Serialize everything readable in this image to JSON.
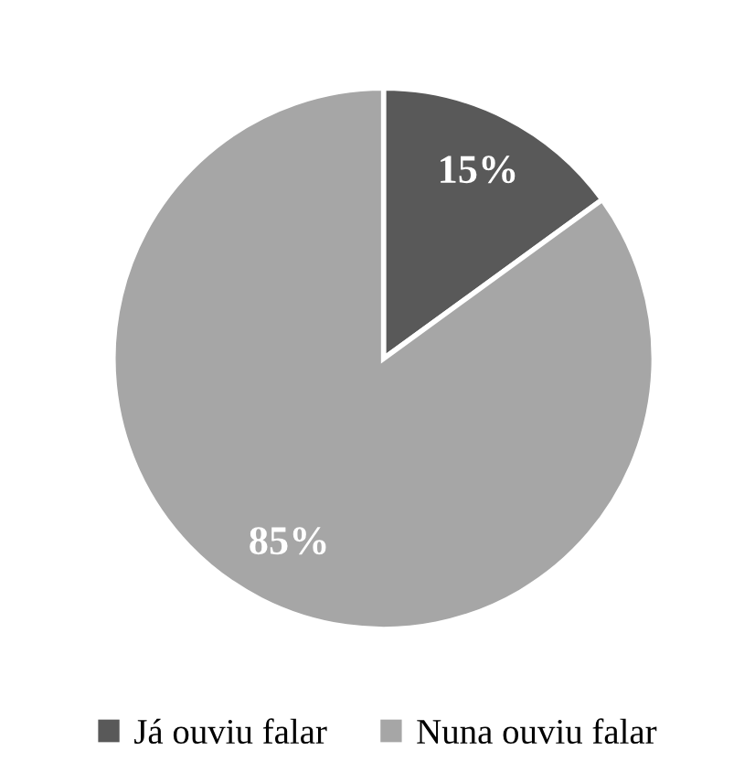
{
  "chart_data": {
    "type": "pie",
    "categories": [
      "Já ouviu falar",
      "Nuna ouviu falar"
    ],
    "values": [
      15,
      85
    ],
    "colors": [
      "#595959",
      "#a6a6a6"
    ],
    "value_labels": [
      "15%",
      "85%"
    ],
    "legend": "bottom"
  }
}
